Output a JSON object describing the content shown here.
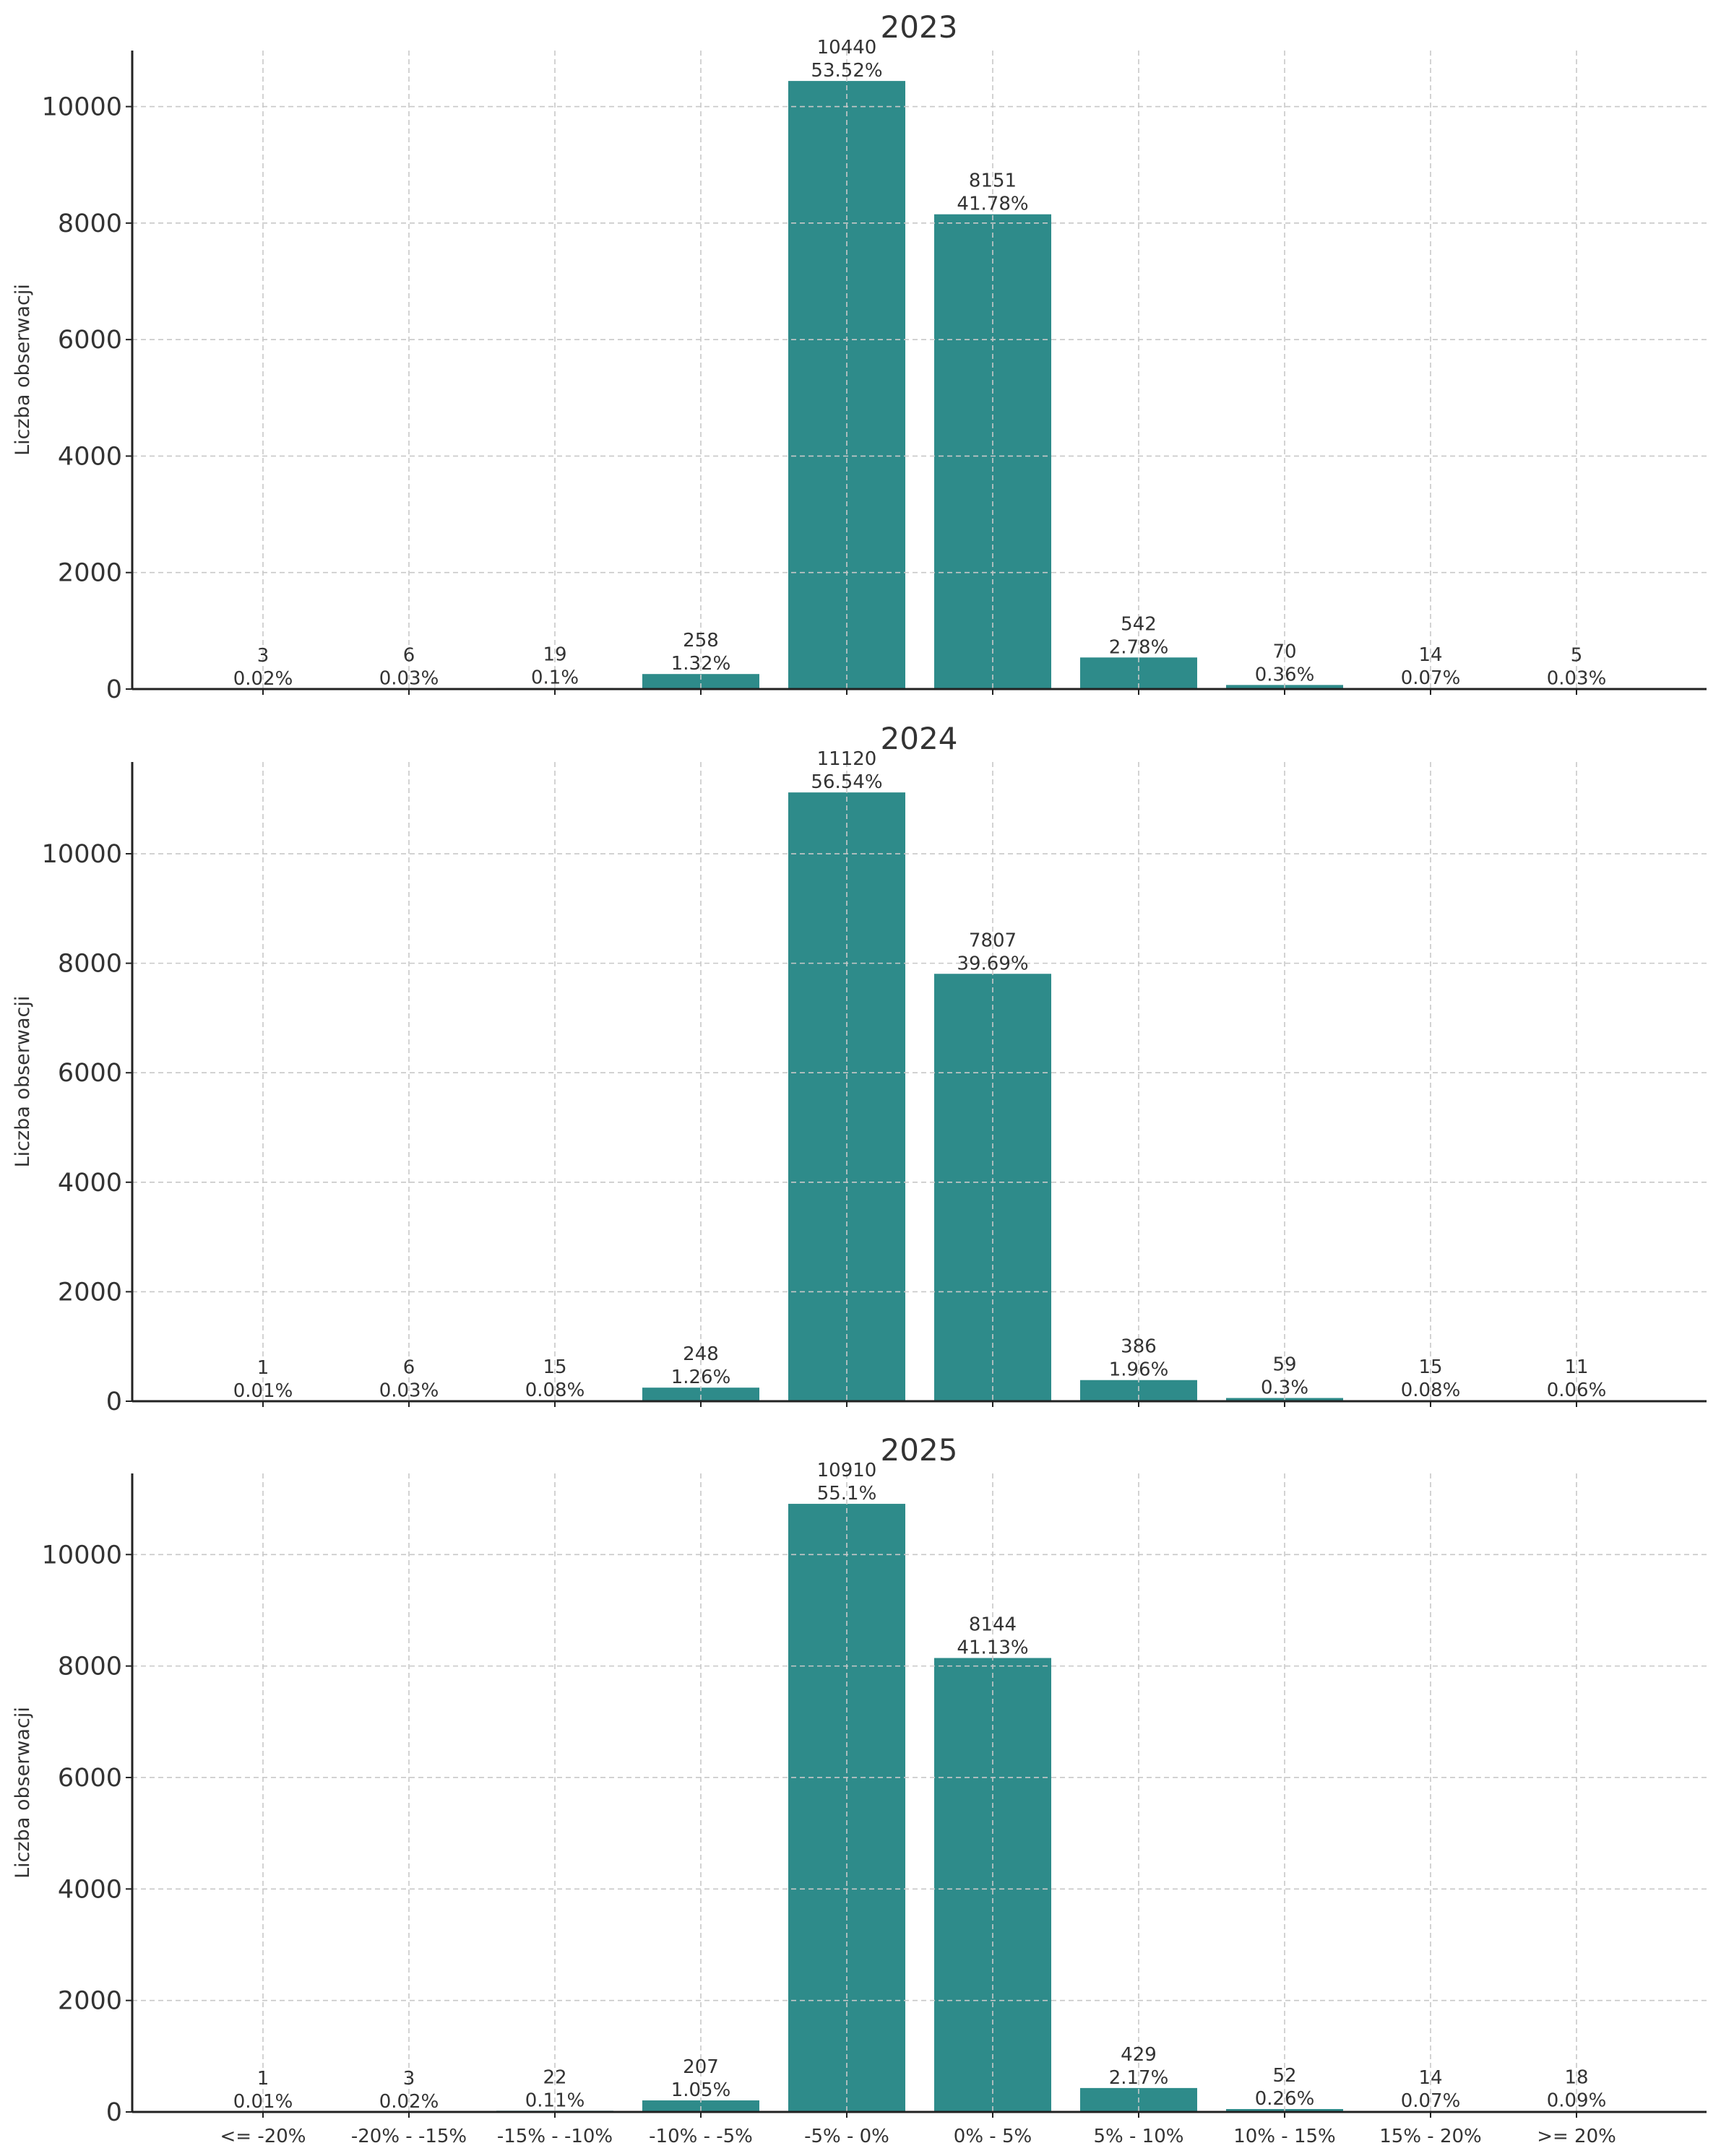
{
  "colors": {
    "bar": "#2e8b8a",
    "grid": "#c8c8c8",
    "axis": "#222222",
    "text": "#333333"
  },
  "chart_data": [
    {
      "type": "bar",
      "title": "2023",
      "ylabel": "Liczba obserwacji",
      "categories": [
        "<= -20%",
        "-20% - -15%",
        "-15% - -10%",
        "-10% - -5%",
        "-5% - 0%",
        "0% - 5%",
        "5% - 10%",
        "10% - 15%",
        "15% - 20%",
        ">= 20%"
      ],
      "values": [
        3,
        6,
        19,
        258,
        10440,
        8151,
        542,
        70,
        14,
        5
      ],
      "percent_labels": [
        "0.02%",
        "0.03%",
        "0.1%",
        "1.32%",
        "53.52%",
        "41.78%",
        "2.78%",
        "0.36%",
        "0.07%",
        "0.03%"
      ],
      "ylim": [
        0,
        10962
      ],
      "yticks": [
        0,
        2000,
        4000,
        6000,
        8000,
        10000
      ],
      "grid": true,
      "show_xtick_labels": false
    },
    {
      "type": "bar",
      "title": "2024",
      "ylabel": "Liczba obserwacji",
      "categories": [
        "<= -20%",
        "-20% - -15%",
        "-15% - -10%",
        "-10% - -5%",
        "-5% - 0%",
        "0% - 5%",
        "5% - 10%",
        "10% - 15%",
        "15% - 20%",
        ">= 20%"
      ],
      "values": [
        1,
        6,
        15,
        248,
        11120,
        7807,
        386,
        59,
        15,
        11
      ],
      "percent_labels": [
        "0.01%",
        "0.03%",
        "0.08%",
        "1.26%",
        "56.54%",
        "39.69%",
        "1.96%",
        "0.3%",
        "0.08%",
        "0.06%"
      ],
      "ylim": [
        0,
        11676
      ],
      "yticks": [
        0,
        2000,
        4000,
        6000,
        8000,
        10000
      ],
      "grid": true,
      "show_xtick_labels": false
    },
    {
      "type": "bar",
      "title": "2025",
      "ylabel": "Liczba obserwacji",
      "categories": [
        "<= -20%",
        "-20% - -15%",
        "-15% - -10%",
        "-10% - -5%",
        "-5% - 0%",
        "0% - 5%",
        "5% - 10%",
        "10% - 15%",
        "15% - 20%",
        ">= 20%"
      ],
      "values": [
        1,
        3,
        22,
        207,
        10910,
        8144,
        429,
        52,
        14,
        18
      ],
      "percent_labels": [
        "0.01%",
        "0.02%",
        "0.11%",
        "1.05%",
        "55.1%",
        "41.13%",
        "2.17%",
        "0.26%",
        "0.07%",
        "0.09%"
      ],
      "ylim": [
        0,
        11455
      ],
      "yticks": [
        0,
        2000,
        4000,
        6000,
        8000,
        10000
      ],
      "grid": true,
      "show_xtick_labels": true
    }
  ]
}
